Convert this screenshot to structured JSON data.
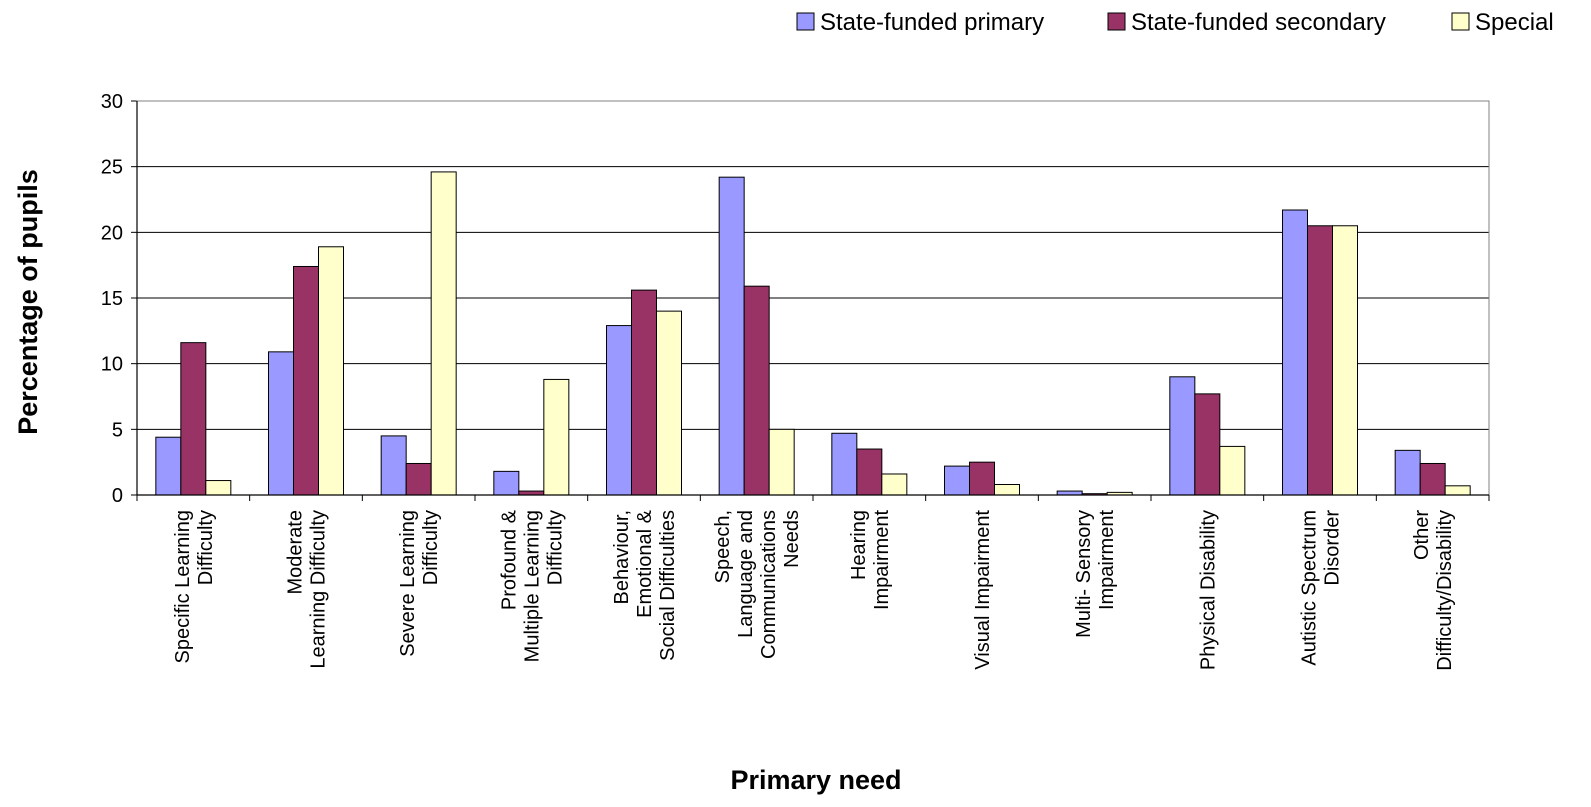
{
  "chart_data": {
    "type": "bar",
    "xlabel": "Primary need",
    "ylabel": "Percentage of pupils",
    "ylim": [
      0,
      30
    ],
    "yticks": [
      0,
      5,
      10,
      15,
      20,
      25,
      30
    ],
    "grid": true,
    "legend_position": "top-right",
    "categories": [
      [
        "Specific Learning",
        "Difficulty"
      ],
      [
        "Moderate",
        "Learning Difficulty"
      ],
      [
        "Severe Learning",
        "Difficulty"
      ],
      [
        "Profound &",
        "Multiple Learning",
        "Difficulty"
      ],
      [
        "Behaviour,",
        "Emotional &",
        "Social Difficulties"
      ],
      [
        "Speech,",
        "Language and",
        "Communications",
        "Needs"
      ],
      [
        "Hearing",
        "Impairment"
      ],
      [
        "Visual Impairment"
      ],
      [
        "Multi- Sensory",
        "Impairment"
      ],
      [
        "Physical Disability"
      ],
      [
        "Autistic Spectrum",
        "Disorder"
      ],
      [
        "Other",
        "Difficulty/Disability"
      ]
    ],
    "series": [
      {
        "name": "State-funded primary",
        "color": "#9999ff",
        "values": [
          4.4,
          10.9,
          4.5,
          1.8,
          12.9,
          24.2,
          4.7,
          2.2,
          0.3,
          9.0,
          21.7,
          3.4
        ]
      },
      {
        "name": "State-funded secondary",
        "color": "#993366",
        "values": [
          11.6,
          17.4,
          2.4,
          0.3,
          15.6,
          15.9,
          3.5,
          2.5,
          0.1,
          7.7,
          20.5,
          2.4
        ]
      },
      {
        "name": "Special",
        "color": "#ffffcc",
        "values": [
          1.1,
          18.9,
          24.6,
          8.8,
          14.0,
          5.0,
          1.6,
          0.8,
          0.2,
          3.7,
          20.5,
          0.7
        ]
      }
    ]
  }
}
